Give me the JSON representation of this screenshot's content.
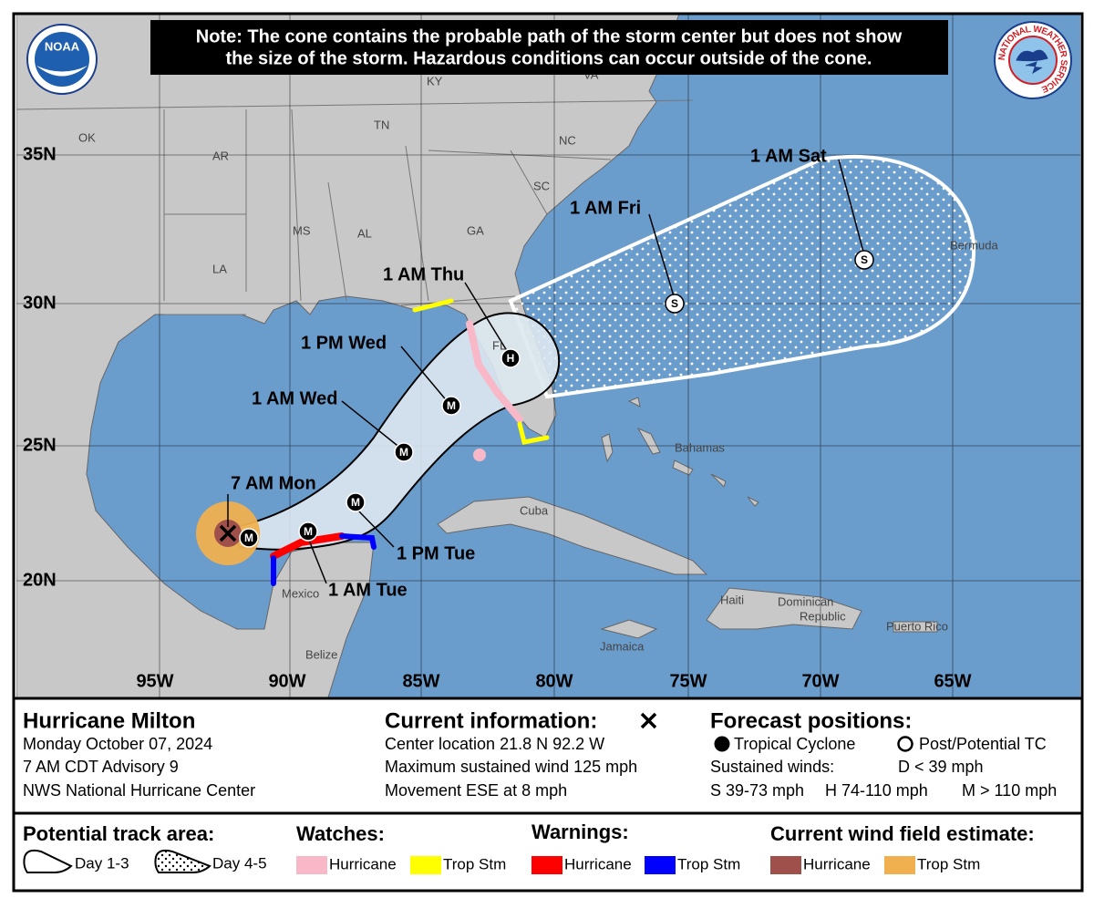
{
  "logos": {
    "noaa": "NOAA",
    "nws": "NATIONAL WEATHER SERVICE"
  },
  "note": [
    "Note: The cone contains the probable path of the storm center but does not show",
    "the size of the storm. Hazardous conditions can occur outside of the cone."
  ],
  "map": {
    "latitudes": [
      "35N",
      "30N",
      "25N",
      "20N"
    ],
    "longitudes": [
      "95W",
      "90W",
      "85W",
      "80W",
      "75W",
      "70W",
      "65W"
    ],
    "places": [
      "OK",
      "AR",
      "TN",
      "KY",
      "VA",
      "NC",
      "SC",
      "MS",
      "AL",
      "GA",
      "LA",
      "FL",
      "Bermuda",
      "Bahamas",
      "Cuba",
      "Haiti",
      "Dominican",
      "Republic",
      "Puerto Rico",
      "Jamaica",
      "Mexico",
      "Belize"
    ],
    "forecast_times": [
      "7 AM Mon",
      "1 AM Tue",
      "1 PM Tue",
      "1 AM Wed",
      "1 PM Wed",
      "1 AM Thu",
      "1 AM Fri",
      "1 AM Sat"
    ],
    "intensity_markers": [
      "M",
      "M",
      "M",
      "M",
      "M",
      "H",
      "S",
      "S"
    ]
  },
  "storm": {
    "name": "Hurricane Milton",
    "date": "Monday October 07, 2024",
    "advisory": "7 AM CDT Advisory 9",
    "center": "NWS National Hurricane Center"
  },
  "current_information": {
    "title": "Current information:",
    "lines": [
      "Center location 21.8 N 92.2 W",
      "Maximum sustained wind 125 mph",
      "Movement ESE at 8 mph"
    ]
  },
  "forecast_positions": {
    "title": "Forecast positions:",
    "tropical": "Tropical Cyclone",
    "post": "Post/Potential TC",
    "winds_label": "Sustained winds:",
    "d": "D < 39 mph",
    "s": "S 39-73 mph",
    "h": "H 74-110 mph",
    "m": "M > 110 mph"
  },
  "legend": {
    "track": {
      "title": "Potential track area:",
      "day13": "Day 1-3",
      "day45": "Day 4-5"
    },
    "watches": {
      "title": "Watches:",
      "hurricane": "Hurricane",
      "trop": "Trop Stm"
    },
    "warnings": {
      "title": "Warnings:",
      "hurricane": "Hurricane",
      "trop": "Trop Stm"
    },
    "wind": {
      "title": "Current wind field estimate:",
      "hurricane": "Hurricane",
      "trop": "Trop Stm"
    }
  }
}
